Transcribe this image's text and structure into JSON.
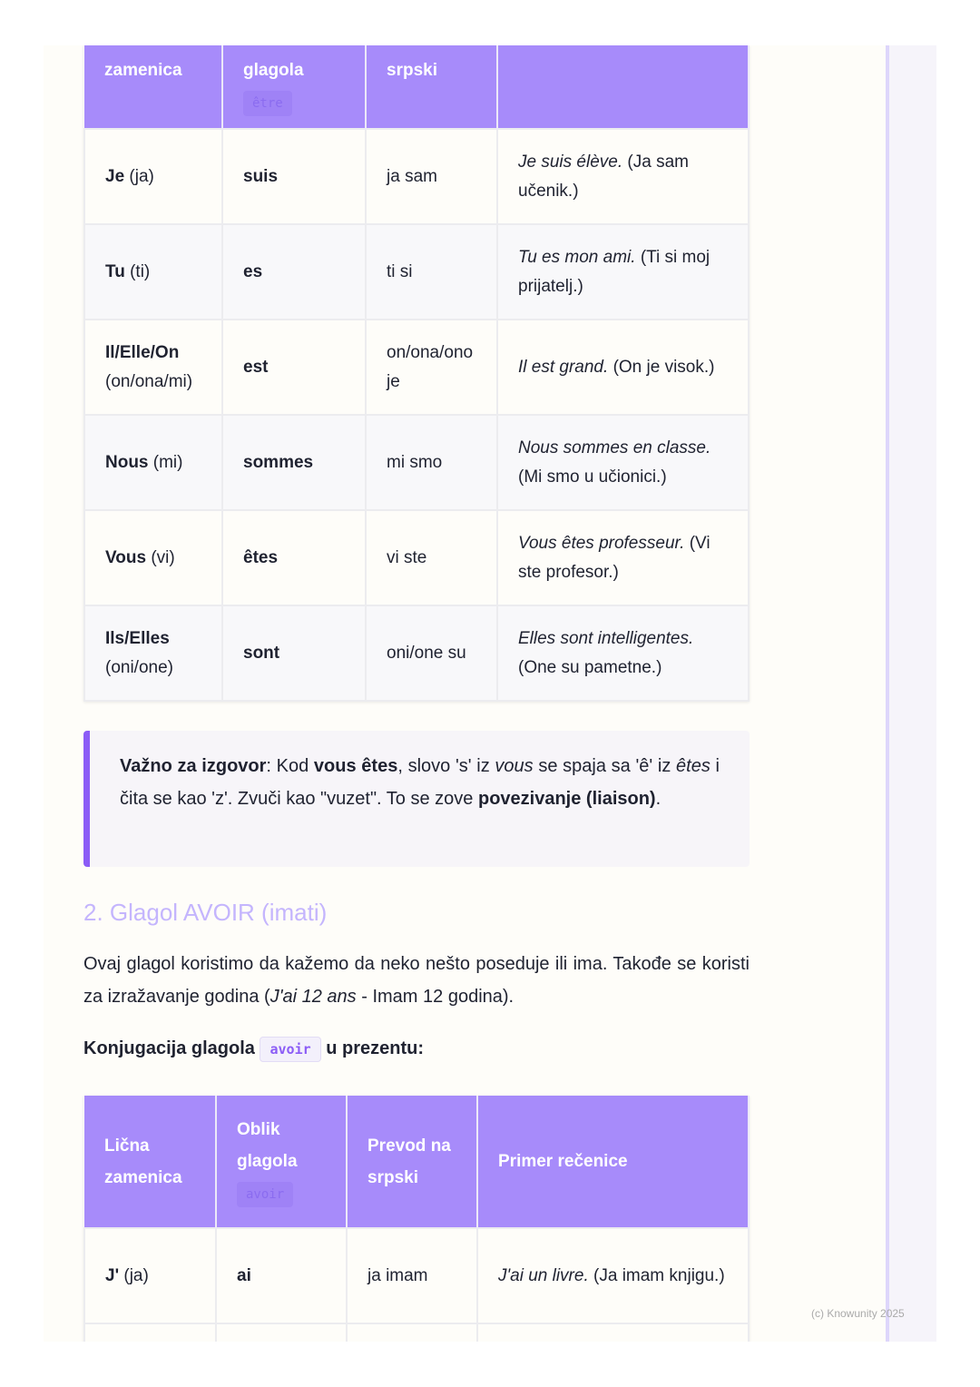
{
  "table1": {
    "headers": [
      "zamenica",
      "glagola",
      "srpski",
      ""
    ],
    "header_code": "être",
    "rows": [
      {
        "pron": "Je",
        "pron_sr": "(ja)",
        "verb": "suis",
        "sr": "ja sam",
        "ex": "Je suis élève.",
        "ex_sr": "(Ja sam učenik.)"
      },
      {
        "pron": "Tu",
        "pron_sr": "(ti)",
        "verb": "es",
        "sr": "ti si",
        "ex": "Tu es mon ami.",
        "ex_sr": "(Ti si moj prijatelj.)"
      },
      {
        "pron": "Il/Elle/On",
        "pron_sr": "(on/ona/mi)",
        "verb": "est",
        "sr": "on/ona/ono je",
        "ex": "Il est grand.",
        "ex_sr": "(On je visok.)"
      },
      {
        "pron": "Nous",
        "pron_sr": "(mi)",
        "verb": "sommes",
        "sr": "mi smo",
        "ex": "Nous sommes en classe.",
        "ex_sr": "(Mi smo u učionici.)"
      },
      {
        "pron": "Vous",
        "pron_sr": "(vi)",
        "verb": "êtes",
        "sr": "vi ste",
        "ex": "Vous êtes professeur.",
        "ex_sr": "(Vi ste profesor.)"
      },
      {
        "pron": "Ils/Elles",
        "pron_sr": "(oni/one)",
        "verb": "sont",
        "sr": "oni/one su",
        "ex": "Elles sont intelligentes.",
        "ex_sr": "(One su pametne.)"
      }
    ]
  },
  "callout": {
    "b1": "Važno za izgovor",
    "t1": ": Kod ",
    "b2": "vous êtes",
    "t2": ", slovo 's' iz ",
    "i1": "vous",
    "t3": " se spaja sa 'ê' iz ",
    "i2": "êtes",
    "t4": " i čita se kao 'z'. Zvuči kao \"vuzet\". To se zove ",
    "b3": "povezivanje (liaison)",
    "t5": "."
  },
  "section": {
    "heading": "2. Glagol AVOIR (imati)",
    "para_a": "Ovaj glagol koristimo da kažemo da neko nešto poseduje ili ima. Takođe se koristi za izražavanje godina (",
    "para_i": "J'ai 12 ans",
    "para_b": " - Imam 12 godina).",
    "conj_a": "Konjugacija glagola",
    "conj_code": "avoir",
    "conj_b": "u prezentu:"
  },
  "table2": {
    "headers": [
      "Lična zamenica",
      "Oblik glagola",
      "Prevod na srpski",
      "Primer rečenice"
    ],
    "header_code": "avoir",
    "rows": [
      {
        "pron": "J'",
        "pron_sr": "(ja)",
        "verb": "ai",
        "sr": "ja imam",
        "ex": "J'ai un livre.",
        "ex_sr": "(Ja imam knjigu.)"
      }
    ]
  },
  "footer": "(c) Knowunity 2025",
  "colors": {
    "header": "#a78bfa",
    "accent": "#8b5cf6",
    "heading": "#c4b5fd"
  }
}
